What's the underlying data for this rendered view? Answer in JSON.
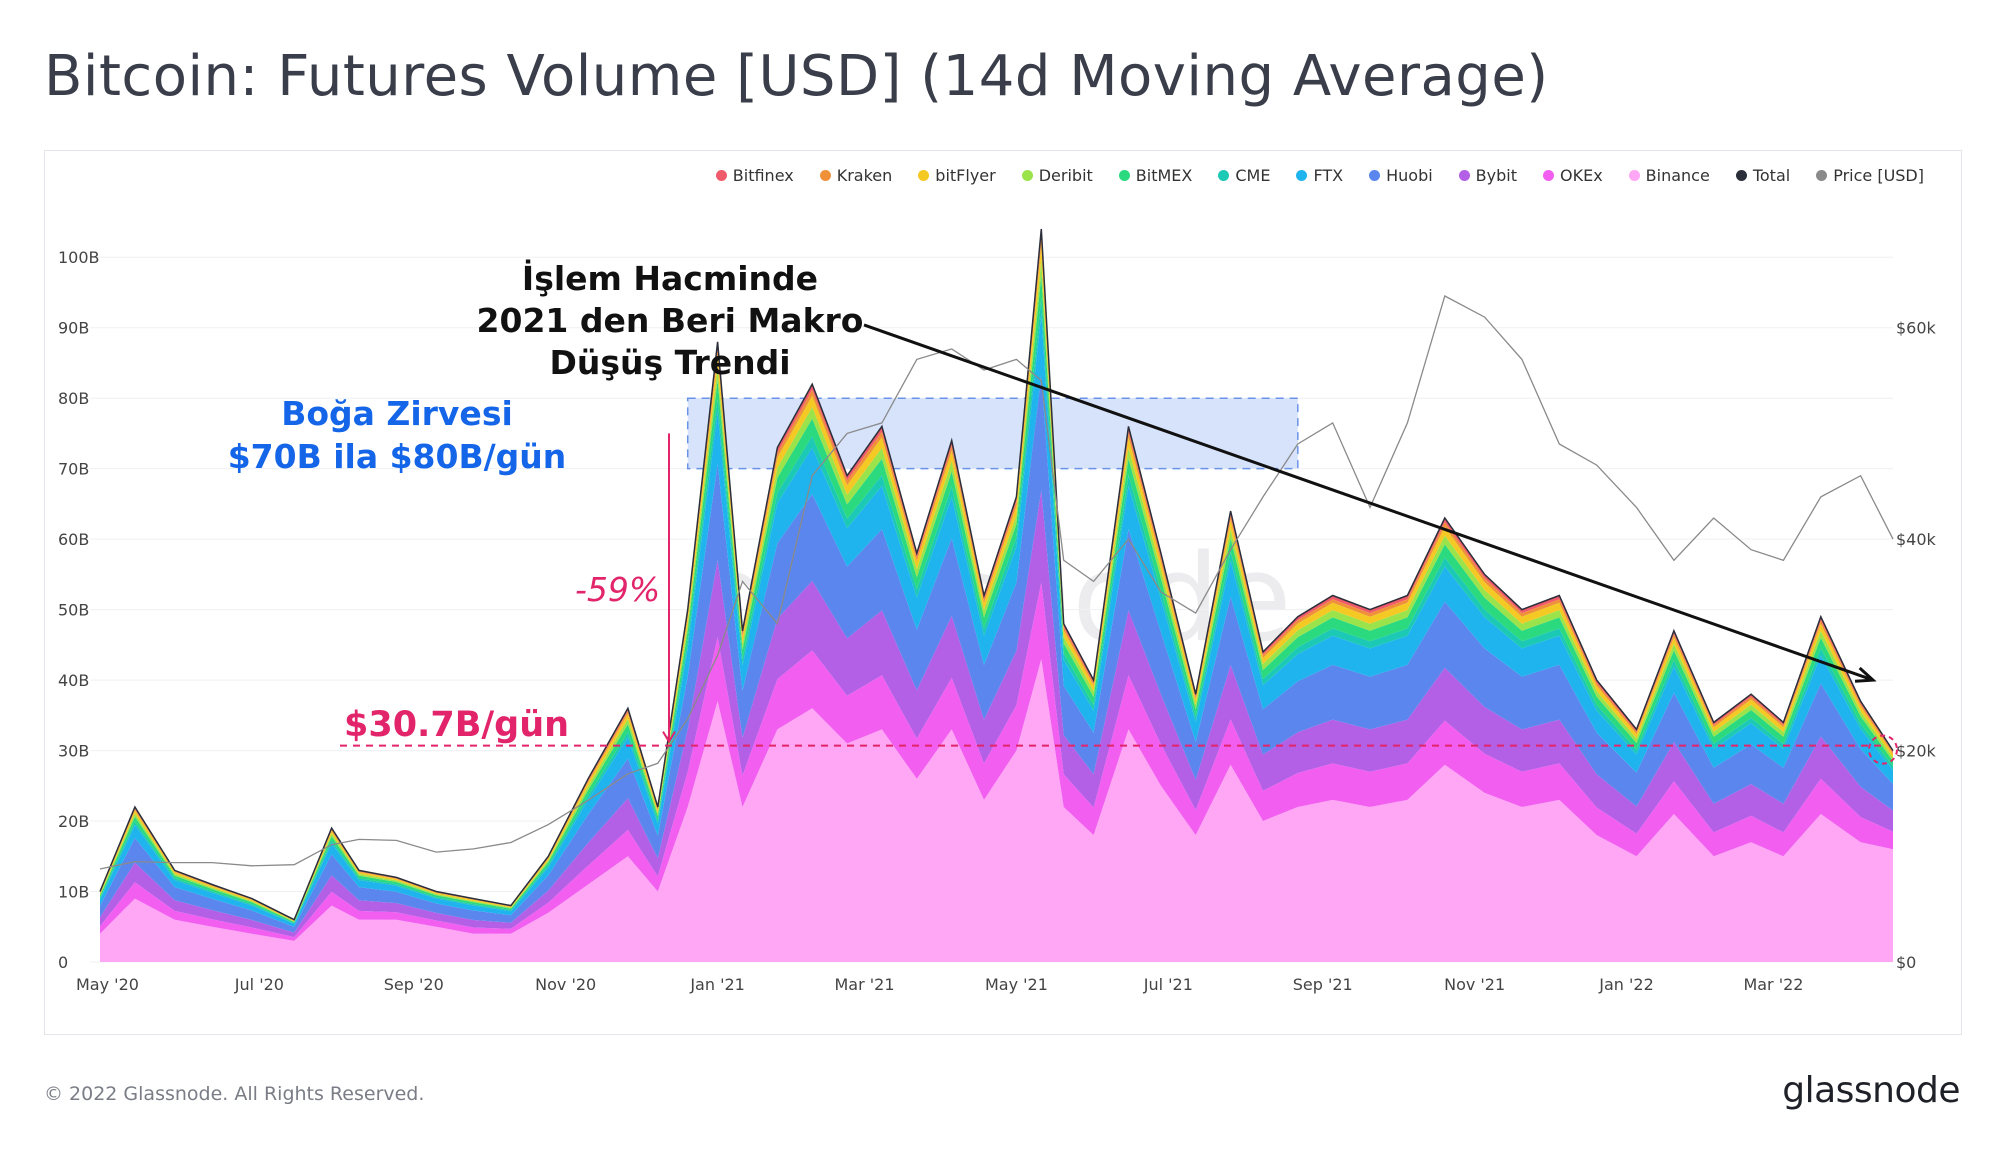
{
  "page": {
    "title": "Bitcoin: Futures Volume [USD] (14d Moving Average)",
    "copyright": "© 2022 Glassnode. All Rights Reserved.",
    "logo": "glassnode",
    "watermark": "glassnode"
  },
  "annotations": {
    "trend_line1": "İşlem Hacminde",
    "trend_line2": "2021 den Beri Makro Düşüş Trendi",
    "peak_line1": "Boğa Zirvesi",
    "peak_line2": "$70B ila $80B/gün",
    "drop_pct": "-59%",
    "current_level": "$30.7B/gün"
  },
  "colors": {
    "Bitfinex": "#ef5b6b",
    "Kraken": "#f0913a",
    "bitFlyer": "#f5c924",
    "Deribit": "#9be34b",
    "BitMEX": "#2bd97f",
    "CME": "#1cc9b4",
    "FTX": "#20b4ee",
    "Huobi": "#5a86ee",
    "Bybit": "#b35fe6",
    "OKEx": "#f25ff0",
    "Binance": "#ffa6f5",
    "Total": "#2b2f3a",
    "Price [USD]": "#8a8a8a",
    "annotation_pink": "#e2246b",
    "annotation_blue": "#1565e8",
    "peak_box": "#d6e3fb"
  },
  "chart_data": {
    "type": "area",
    "title": "Bitcoin: Futures Volume [USD] (14d Moving Average)",
    "xlabel": "",
    "ylabel": "",
    "legend_position": "top-right",
    "grid": true,
    "x_tick_labels": [
      "May '20",
      "Jul '20",
      "Sep '20",
      "Nov '20",
      "Jan '21",
      "Mar '21",
      "May '21",
      "Jul '21",
      "Sep '21",
      "Nov '21",
      "Jan '22",
      "Mar '22"
    ],
    "y_left_tick_labels": [
      "0",
      "10B",
      "20B",
      "30B",
      "40B",
      "50B",
      "60B",
      "70B",
      "80B",
      "90B",
      "100B"
    ],
    "y_left_range": [
      0,
      105
    ],
    "y_left_unit": "B USD",
    "y_right_tick_labels": [
      "$0",
      "$20k",
      "$40k",
      "$60k"
    ],
    "y_right_range": [
      0,
      70000
    ],
    "x": [
      "2020-04-28",
      "2020-05-12",
      "2020-05-28",
      "2020-06-12",
      "2020-06-28",
      "2020-07-15",
      "2020-07-30",
      "2020-08-10",
      "2020-08-25",
      "2020-09-10",
      "2020-09-25",
      "2020-10-10",
      "2020-10-25",
      "2020-11-10",
      "2020-11-26",
      "2020-12-08",
      "2020-12-20",
      "2021-01-01",
      "2021-01-11",
      "2021-01-25",
      "2021-02-08",
      "2021-02-22",
      "2021-03-08",
      "2021-03-22",
      "2021-04-05",
      "2021-04-18",
      "2021-05-01",
      "2021-05-11",
      "2021-05-20",
      "2021-06-01",
      "2021-06-15",
      "2021-06-28",
      "2021-07-12",
      "2021-07-26",
      "2021-08-08",
      "2021-08-22",
      "2021-09-05",
      "2021-09-20",
      "2021-10-05",
      "2021-10-20",
      "2021-11-05",
      "2021-11-20",
      "2021-12-05",
      "2021-12-20",
      "2022-01-05",
      "2022-01-20",
      "2022-02-05",
      "2022-02-20",
      "2022-03-05",
      "2022-03-20",
      "2022-04-05",
      "2022-04-18"
    ],
    "total_volume_B": [
      10,
      22,
      13,
      11,
      9,
      6,
      19,
      13,
      12,
      10,
      9,
      8,
      15,
      26,
      36,
      22,
      50,
      88,
      47,
      73,
      82,
      69,
      76,
      58,
      74,
      52,
      66,
      104,
      48,
      40,
      76,
      58,
      38,
      64,
      44,
      49,
      52,
      50,
      52,
      63,
      55,
      50,
      52,
      40,
      33,
      47,
      34,
      38,
      34,
      49,
      37,
      30
    ],
    "binance_volume_B": [
      4,
      9,
      6,
      5,
      4,
      3,
      8,
      6,
      6,
      5,
      4,
      4,
      7,
      11,
      15,
      10,
      22,
      37,
      22,
      33,
      36,
      31,
      33,
      26,
      33,
      23,
      30,
      43,
      22,
      18,
      33,
      25,
      18,
      28,
      20,
      22,
      23,
      22,
      23,
      28,
      24,
      22,
      23,
      18,
      15,
      21,
      15,
      17,
      15,
      21,
      17,
      16
    ],
    "stack_share": {
      "Binance": 0.44,
      "OKEx": 0.1,
      "Bybit": 0.12,
      "Huobi": 0.15,
      "FTX": 0.08,
      "CME": 0.02,
      "BitMEX": 0.03,
      "Deribit": 0.02,
      "bitFlyer": 0.02,
      "Kraken": 0.01,
      "Bitfinex": 0.01
    },
    "price_usd": [
      8800,
      9500,
      9400,
      9400,
      9100,
      9200,
      11100,
      11600,
      11500,
      10400,
      10700,
      11300,
      13000,
      15300,
      17800,
      18800,
      23000,
      29000,
      36000,
      32000,
      46000,
      50000,
      51000,
      57000,
      58000,
      56000,
      57000,
      55000,
      38000,
      36000,
      40000,
      35000,
      33000,
      39000,
      44000,
      49000,
      51000,
      43000,
      51000,
      63000,
      61000,
      57000,
      49000,
      47000,
      43000,
      38000,
      42000,
      39000,
      38000,
      44000,
      46000,
      40000
    ],
    "series": [
      {
        "name": "Bitfinex"
      },
      {
        "name": "Kraken"
      },
      {
        "name": "bitFlyer"
      },
      {
        "name": "Deribit"
      },
      {
        "name": "BitMEX"
      },
      {
        "name": "CME"
      },
      {
        "name": "FTX"
      },
      {
        "name": "Huobi"
      },
      {
        "name": "Bybit"
      },
      {
        "name": "OKEx"
      },
      {
        "name": "Binance"
      },
      {
        "name": "Total"
      },
      {
        "name": "Price [USD]"
      }
    ],
    "overlays": {
      "peak_band_B": [
        70,
        80
      ],
      "peak_band_dates": [
        "2020-12-20",
        "2021-08-22"
      ],
      "current_level_B": 30.7,
      "trend_line": {
        "from": [
          "2021-04-22",
          85
        ],
        "to": [
          "2022-04-18",
          40
        ]
      }
    }
  }
}
